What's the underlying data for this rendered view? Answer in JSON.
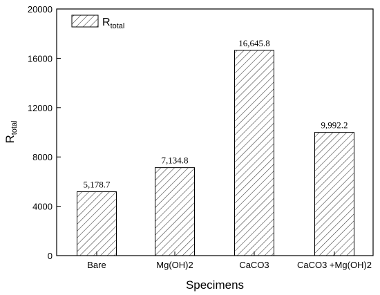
{
  "chart_data": {
    "type": "bar",
    "categories": [
      "Bare",
      "Mg(OH)2",
      "CaCO3",
      "CaCO3 +Mg(OH)2"
    ],
    "series": [
      {
        "name": "R",
        "name_subscript": "total",
        "values": [
          5178.7,
          7134.8,
          16645.8,
          9992.2
        ]
      }
    ],
    "data_labels": [
      "5,178.7",
      "7,134.8",
      "16,645.8",
      "9,992.2"
    ],
    "xlabel": "Specimens",
    "ylabel": "R",
    "ylabel_subscript": "total",
    "ylim": [
      0,
      20000
    ],
    "yticks": [
      0,
      4000,
      8000,
      12000,
      16000,
      20000
    ],
    "legend_position": "top-left",
    "bar_fill": "hatched",
    "grid": false
  }
}
